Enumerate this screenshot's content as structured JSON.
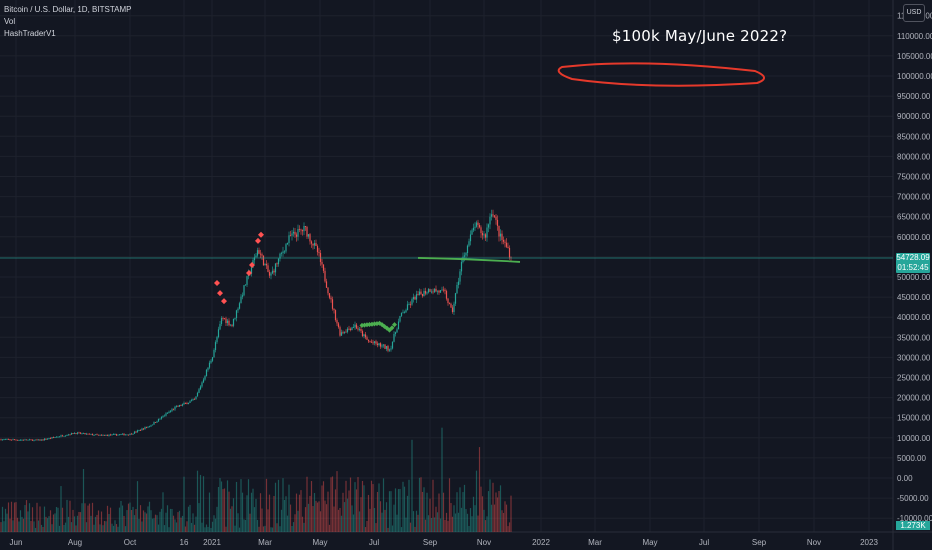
{
  "legend": {
    "symbol": "Bitcoin / U.S. Dollar, 1D, BITSTAMP",
    "vol": "Vol",
    "indicator": "HashTraderV1"
  },
  "annotation": {
    "text": "$100k May/June 2022?",
    "ellipse_color": "#e5392b"
  },
  "currency_badge": "USD",
  "price_tag": {
    "price": "54728.09",
    "countdown": "01:52:45",
    "color": "#26a69a"
  },
  "volume_tag": "1.273K",
  "colors": {
    "background": "#131722",
    "grid": "#1e222d",
    "up": "#26a69a",
    "down": "#ef5350",
    "support_line": "#4caf50",
    "sell_marker": "#ff5252",
    "buy_marker": "#4caf50"
  },
  "chart_data": {
    "type": "candlestick",
    "y_axis": {
      "ticks": [
        "115000.00",
        "110000.00",
        "105000.00",
        "100000.00",
        "95000.00",
        "90000.00",
        "85000.00",
        "80000.00",
        "75000.00",
        "70000.00",
        "65000.00",
        "60000.00",
        "55000.00",
        "50000.00",
        "45000.00",
        "40000.00",
        "35000.00",
        "30000.00",
        "25000.00",
        "20000.00",
        "15000.00",
        "10000.00",
        "5000.00",
        "0.00",
        "-5000.00",
        "-10000.00"
      ],
      "range": [
        -10000,
        118000
      ]
    },
    "x_axis": {
      "ticks": [
        "Jun",
        "Aug",
        "Oct",
        "16",
        "2021",
        "Mar",
        "May",
        "Jul",
        "Sep",
        "Nov",
        "2022",
        "Mar",
        "May",
        "Jul",
        "Sep",
        "Nov",
        "2023"
      ]
    },
    "price_series": {
      "name": "BTC/USD",
      "dates": [
        "2020-06",
        "2020-07",
        "2020-08",
        "2020-09",
        "2020-10",
        "2020-11",
        "2020-12",
        "2021-01",
        "2021-02",
        "2021-03",
        "2021-04",
        "2021-05",
        "2021-06",
        "2021-07",
        "2021-08",
        "2021-09",
        "2021-10",
        "2021-11",
        "2021-12"
      ],
      "close": [
        9600,
        9500,
        11500,
        10800,
        11000,
        13500,
        19000,
        33000,
        45000,
        58000,
        57000,
        37000,
        35000,
        32000,
        47000,
        43000,
        61000,
        57000,
        54728
      ]
    },
    "support_level": 54000,
    "current_price": 54728.09
  }
}
